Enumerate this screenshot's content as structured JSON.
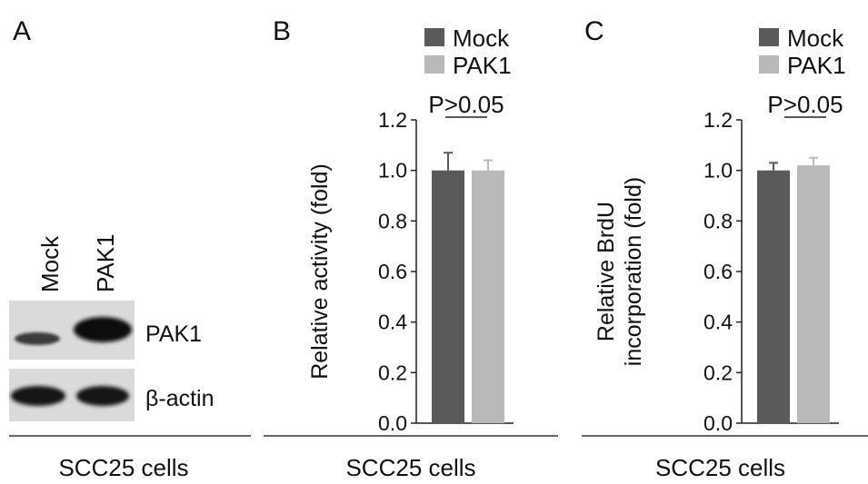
{
  "panel_a": {
    "letter": "A",
    "lanes": [
      "Mock",
      "PAK1"
    ],
    "bands": [
      "PAK1",
      "β-actin"
    ],
    "footer": "SCC25 cells"
  },
  "colors": {
    "mock": "#5a5a5a",
    "pak1": "#b9b9b9"
  },
  "chart_data": [
    {
      "type": "bar",
      "panel": "B",
      "categories": [
        "Mock",
        "PAK1"
      ],
      "values": [
        1.0,
        1.0
      ],
      "errors": [
        0.07,
        0.04
      ],
      "ylabel": "Relative activity (fold)",
      "ylabel_lines": [
        "Relative activity (fold)"
      ],
      "xlabel": "SCC25 cells",
      "ylim": [
        0,
        1.2
      ],
      "yticks": [
        "0.0",
        "0.2",
        "0.4",
        "0.6",
        "0.8",
        "1.0",
        "1.2"
      ],
      "legend": [
        "Mock",
        "PAK1"
      ],
      "legend_position": "top-right",
      "annotation": "P>0.05",
      "grid": false
    },
    {
      "type": "bar",
      "panel": "C",
      "categories": [
        "Mock",
        "PAK1"
      ],
      "values": [
        1.0,
        1.02
      ],
      "errors": [
        0.03,
        0.03
      ],
      "ylabel": "Relative BrdU incorporation (fold)",
      "ylabel_lines": [
        "Relative BrdU",
        "incorporation (fold)"
      ],
      "xlabel": "SCC25 cells",
      "ylim": [
        0,
        1.2
      ],
      "yticks": [
        "0.0",
        "0.2",
        "0.4",
        "0.6",
        "0.8",
        "1.0",
        "1.2"
      ],
      "legend": [
        "Mock",
        "PAK1"
      ],
      "legend_position": "top-right",
      "annotation": "P>0.05",
      "grid": false
    }
  ]
}
